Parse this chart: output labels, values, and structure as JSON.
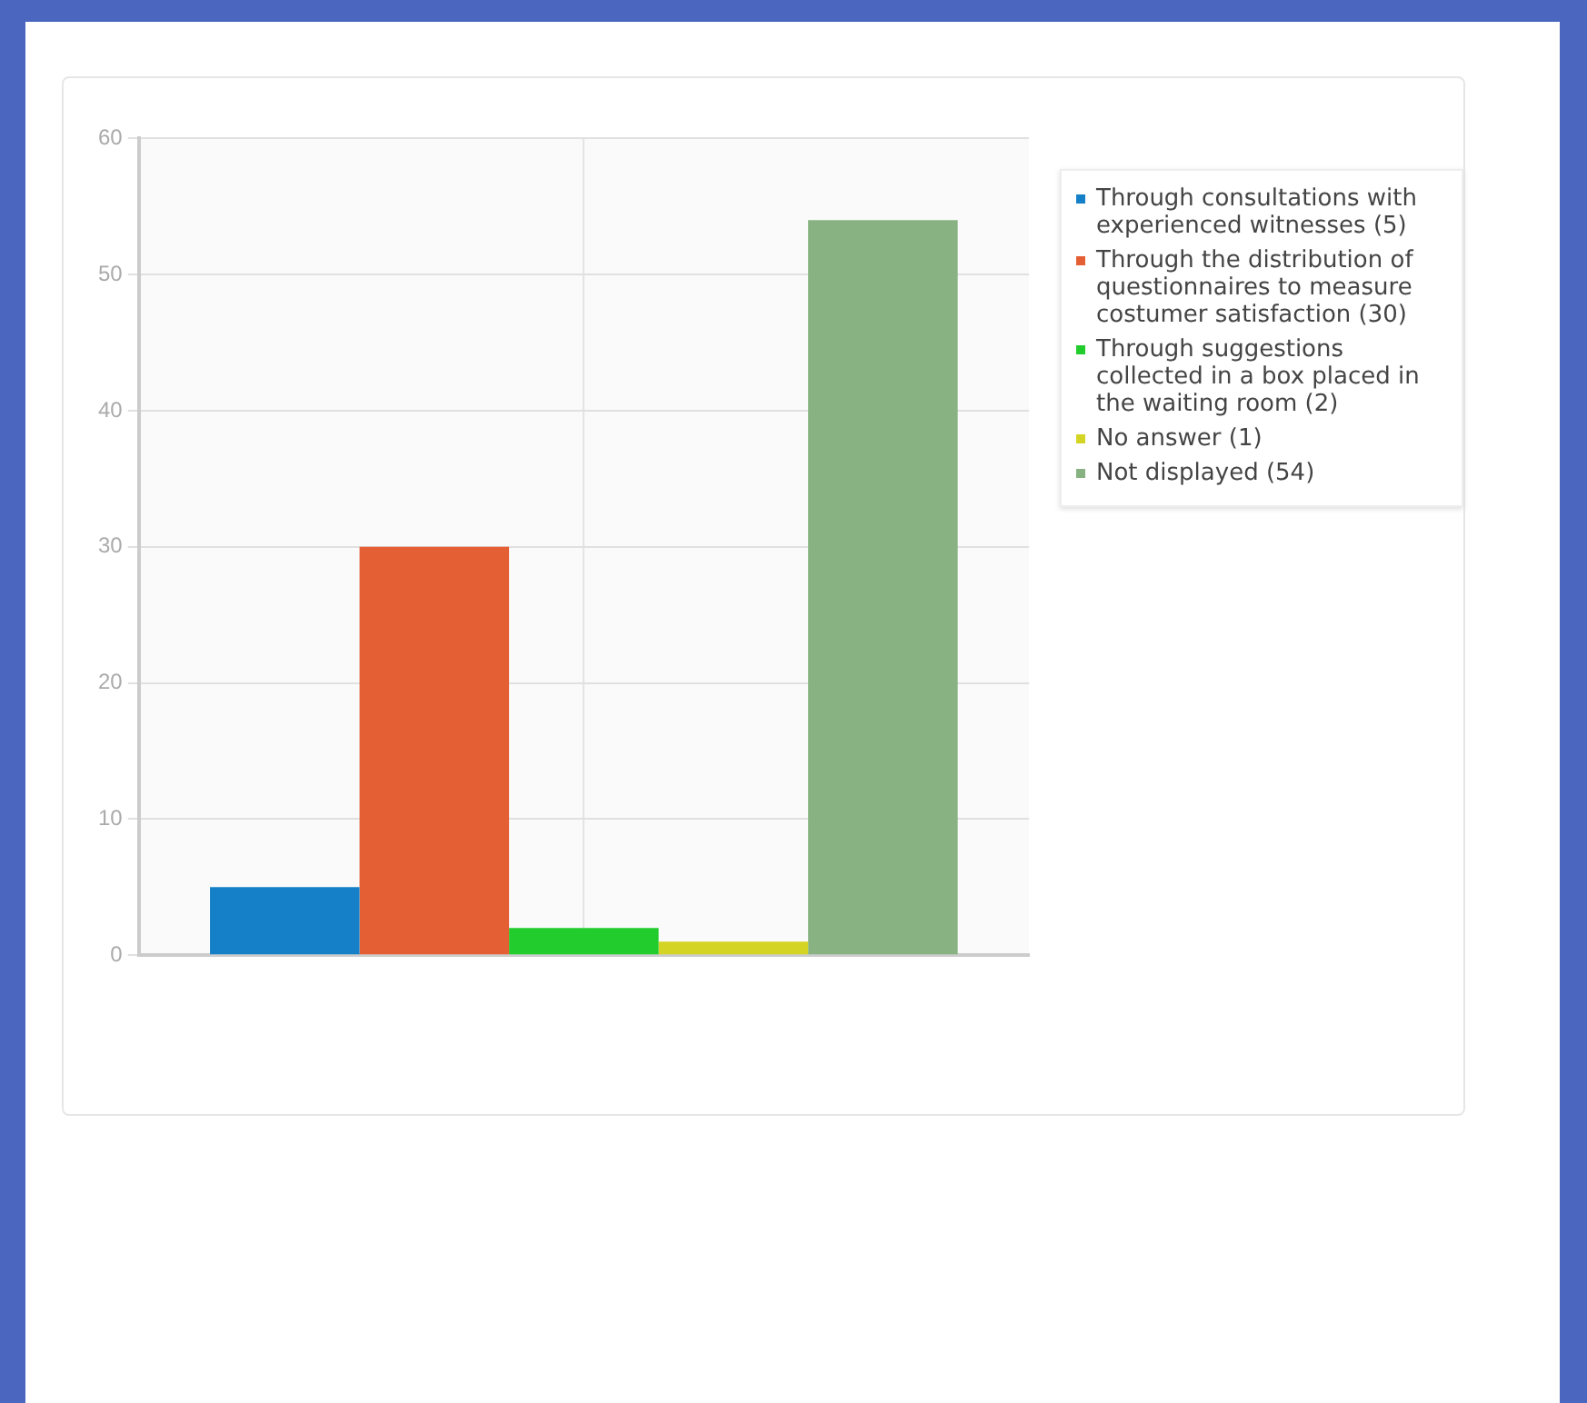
{
  "chart_data": {
    "type": "bar",
    "categories": [
      null
    ],
    "series": [
      {
        "name": "Through consultations with experienced witnesses (5)",
        "color": "#1580c8",
        "values": [
          5
        ]
      },
      {
        "name": "Through the distribution of questionnaires to measure costumer satisfaction (30)",
        "color": "#e55f35",
        "values": [
          30
        ]
      },
      {
        "name": "Through suggestions collected in a box placed in the waiting room (2)",
        "color": "#22cc2c",
        "values": [
          2
        ]
      },
      {
        "name": "No answer (1)",
        "color": "#d4d424",
        "values": [
          1
        ]
      },
      {
        "name": "Not displayed (54)",
        "color": "#88b282",
        "values": [
          54
        ]
      }
    ],
    "ylim": [
      0,
      60
    ],
    "yticks": [
      0,
      10,
      20,
      30,
      40,
      50,
      60
    ],
    "grid": true,
    "legend": "right"
  }
}
